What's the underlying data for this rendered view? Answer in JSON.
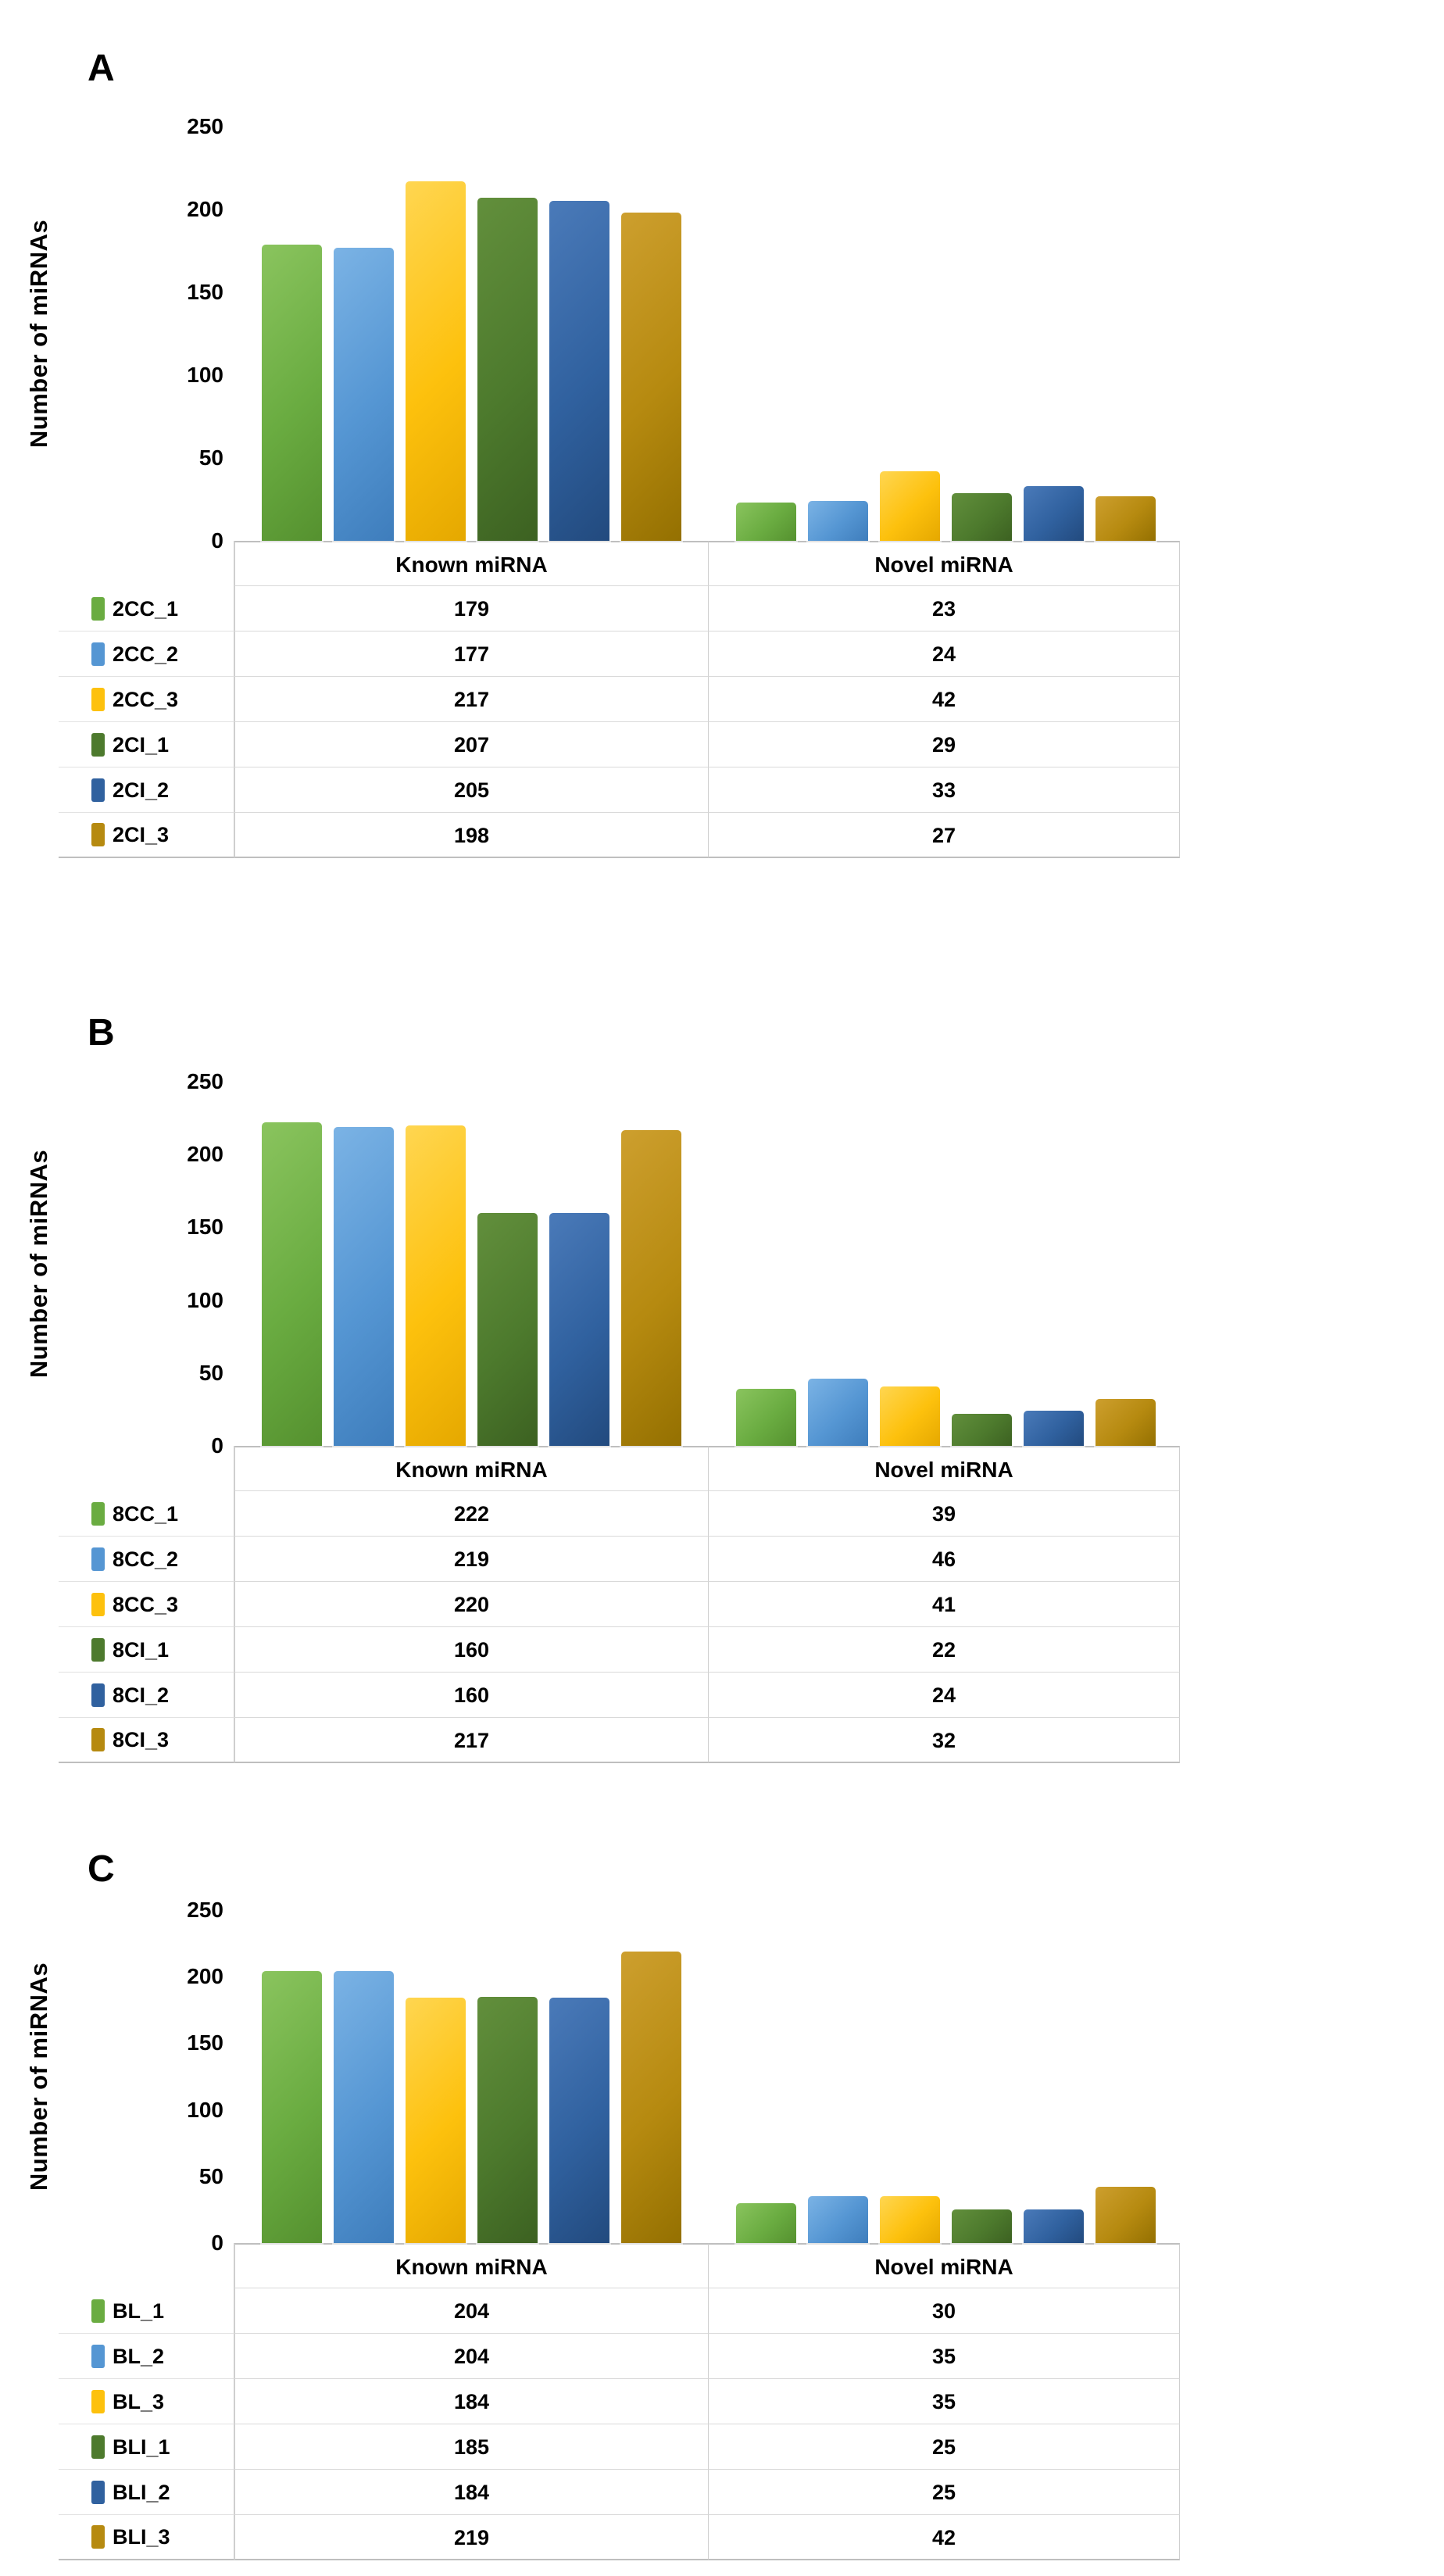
{
  "figure": {
    "y_axis_title": "Number of miRNAs",
    "y_ticks": [
      250,
      200,
      150,
      100,
      50,
      0
    ],
    "columns": {
      "known": "Known miRNA",
      "novel": "Novel miRNA"
    },
    "palette": [
      {
        "name": "series-1-green",
        "base": "#6AAC41",
        "light": "#8AC45E",
        "dark": "#55912F"
      },
      {
        "name": "series-2-blue",
        "base": "#5596D3",
        "light": "#7BB3E5",
        "dark": "#3E7DBC"
      },
      {
        "name": "series-3-yellow",
        "base": "#FDC10D",
        "light": "#FFD651",
        "dark": "#E5A800"
      },
      {
        "name": "series-4-dark-green",
        "base": "#4D7A2D",
        "light": "#628F3C",
        "dark": "#3C6121"
      },
      {
        "name": "series-5-dark-blue",
        "base": "#30619F",
        "light": "#4A7AB9",
        "dark": "#224A7E"
      },
      {
        "name": "series-6-olive",
        "base": "#B68A10",
        "light": "#CD9F2E",
        "dark": "#947001"
      }
    ]
  },
  "chart_data": [
    {
      "type": "bar",
      "panel": "A",
      "title": "",
      "ylabel": "Number of miRNAs",
      "ylim": [
        0,
        250
      ],
      "yticks": [
        0,
        50,
        100,
        150,
        200,
        250
      ],
      "grid": false,
      "legend_position": "table-left",
      "categories": [
        "Known miRNA",
        "Novel miRNA"
      ],
      "series": [
        {
          "name": "2CC_1",
          "values": [
            179,
            23
          ]
        },
        {
          "name": "2CC_2",
          "values": [
            177,
            24
          ]
        },
        {
          "name": "2CC_3",
          "values": [
            217,
            42
          ]
        },
        {
          "name": "2CI_1",
          "values": [
            207,
            29
          ]
        },
        {
          "name": "2CI_2",
          "values": [
            205,
            33
          ]
        },
        {
          "name": "2CI_3",
          "values": [
            198,
            27
          ]
        }
      ]
    },
    {
      "type": "bar",
      "panel": "B",
      "title": "",
      "ylabel": "Number of miRNAs",
      "ylim": [
        0,
        250
      ],
      "yticks": [
        0,
        50,
        100,
        150,
        200,
        250
      ],
      "grid": false,
      "legend_position": "table-left",
      "categories": [
        "Known miRNA",
        "Novel miRNA"
      ],
      "series": [
        {
          "name": "8CC_1",
          "values": [
            222,
            39
          ]
        },
        {
          "name": "8CC_2",
          "values": [
            219,
            46
          ]
        },
        {
          "name": "8CC_3",
          "values": [
            220,
            41
          ]
        },
        {
          "name": "8CI_1",
          "values": [
            160,
            22
          ]
        },
        {
          "name": "8CI_2",
          "values": [
            160,
            24
          ]
        },
        {
          "name": "8CI_3",
          "values": [
            217,
            32
          ]
        }
      ]
    },
    {
      "type": "bar",
      "panel": "C",
      "title": "",
      "ylabel": "Number of miRNAs",
      "ylim": [
        0,
        250
      ],
      "yticks": [
        0,
        50,
        100,
        150,
        200,
        250
      ],
      "grid": false,
      "legend_position": "table-left",
      "categories": [
        "Known miRNA",
        "Novel miRNA"
      ],
      "series": [
        {
          "name": "BL_1",
          "values": [
            204,
            30
          ]
        },
        {
          "name": "BL_2",
          "values": [
            204,
            35
          ]
        },
        {
          "name": "BL_3",
          "values": [
            184,
            35
          ]
        },
        {
          "name": "BLI_1",
          "values": [
            185,
            25
          ]
        },
        {
          "name": "BLI_2",
          "values": [
            184,
            25
          ]
        },
        {
          "name": "BLI_3",
          "values": [
            219,
            42
          ]
        }
      ]
    }
  ]
}
